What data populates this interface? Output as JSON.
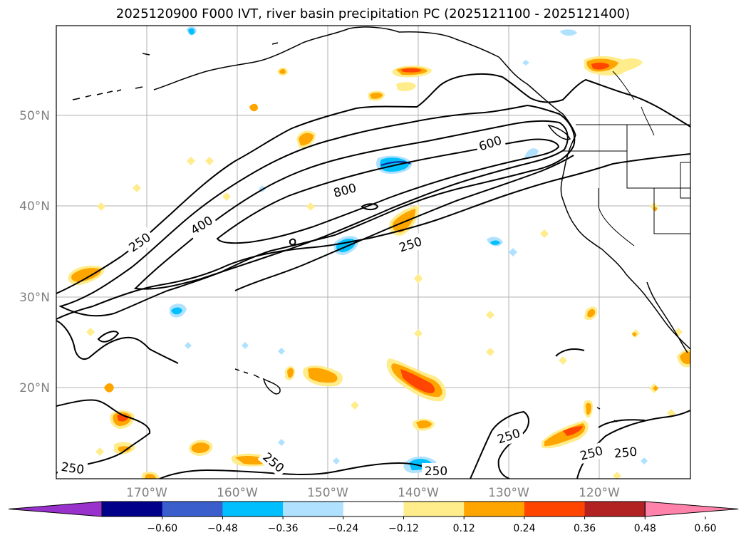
{
  "title": "2025120900 F000 IVT, river basin precipitation PC (2025121100 - 2025121400)",
  "lon_labels": [
    "170°W",
    "160°W",
    "150°W",
    "140°W",
    "130°W",
    "120°W"
  ],
  "lat_labels": [
    "50°N",
    "40°N",
    "30°N",
    "20°N"
  ],
  "contour_labels": {
    "c250_a": "250",
    "c400": "400",
    "c800": "800",
    "c600": "600",
    "c250_b": "250",
    "c250_c": "250",
    "c250_d": "250",
    "c250_e": "250",
    "c250_f": "250",
    "c250_g": "250",
    "c250_h": "250"
  },
  "colorbar": {
    "colors": [
      "#9932cc",
      "#00008b",
      "#3a5fcd",
      "#00bfff",
      "#b0e2ff",
      "#ffffff",
      "#ffec8b",
      "#ffa500",
      "#ff4500",
      "#b22222",
      "#ff82ab"
    ],
    "ticks": [
      "−0.60",
      "−0.48",
      "−0.36",
      "−0.24",
      "−0.12",
      "0.12",
      "0.24",
      "0.36",
      "0.48",
      "0.60"
    ]
  }
}
